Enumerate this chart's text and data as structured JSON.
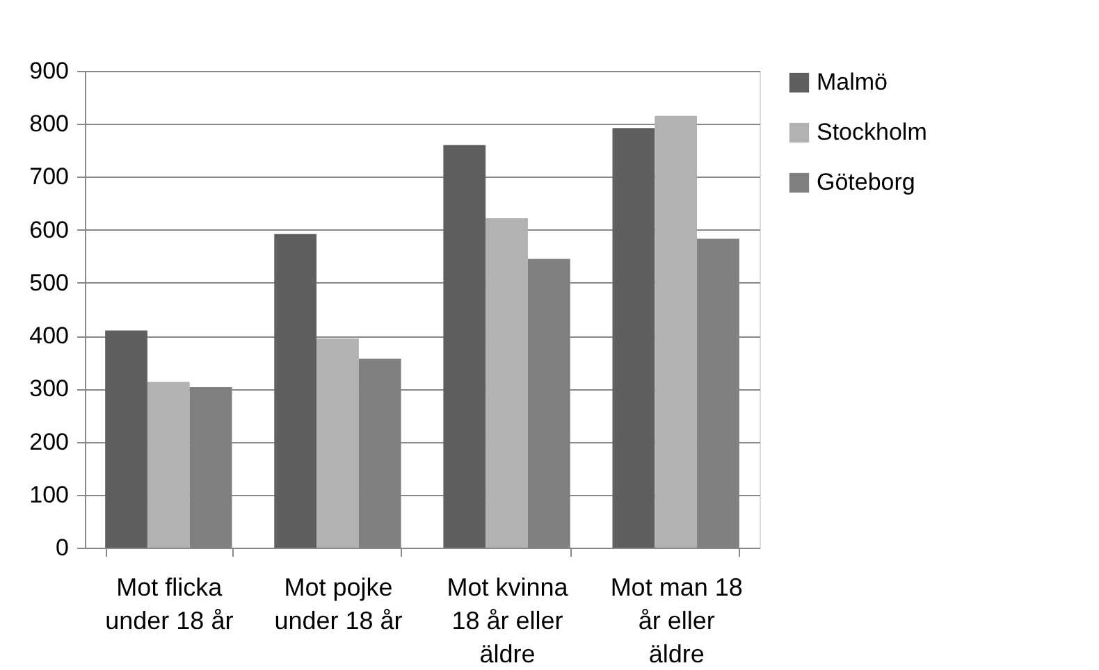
{
  "chart_data": {
    "type": "bar",
    "categories": [
      "Mot flicka under 18 år",
      "Mot pojke under 18 år",
      "Mot kvinna 18 år eller äldre",
      "Mot man 18 år eller äldre"
    ],
    "series": [
      {
        "name": "Malmö",
        "color": "#5f5f5f",
        "values": [
          410,
          592,
          760,
          792
        ]
      },
      {
        "name": "Stockholm",
        "color": "#b2b2b2",
        "values": [
          313,
          395,
          622,
          815
        ]
      },
      {
        "name": "Göteborg",
        "color": "#808080",
        "values": [
          303,
          357,
          545,
          583
        ]
      }
    ],
    "ylim": [
      0,
      900
    ],
    "yticks": [
      0,
      100,
      200,
      300,
      400,
      500,
      600,
      700,
      800,
      900
    ],
    "grid": "y",
    "legend": "right"
  }
}
